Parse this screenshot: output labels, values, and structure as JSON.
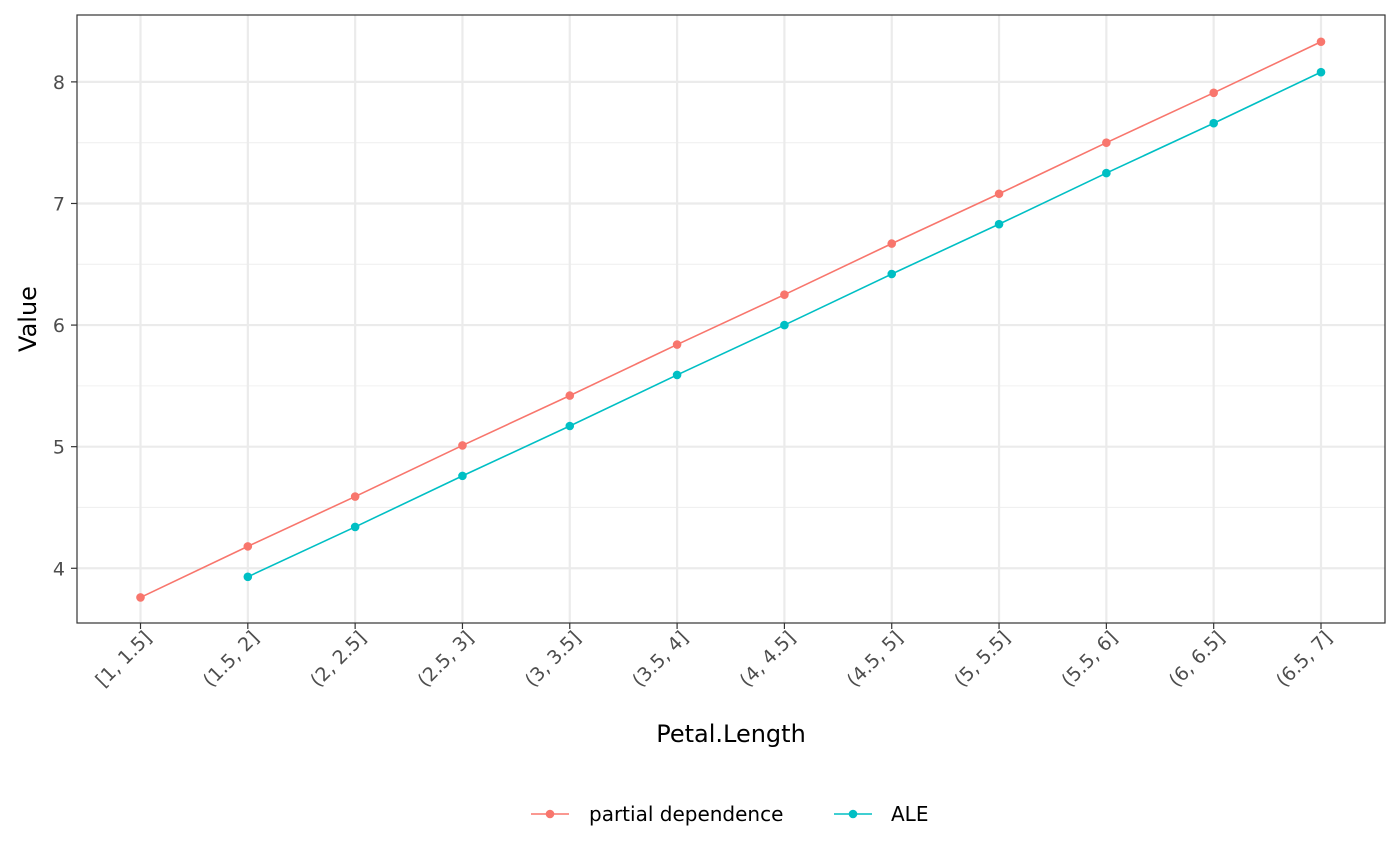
{
  "chart_data": {
    "type": "line",
    "xlabel": "Petal.Length",
    "ylabel": "Value",
    "categories": [
      "[1, 1.5]",
      "(1.5, 2]",
      "(2, 2.5]",
      "(2.5, 3]",
      "(3, 3.5]",
      "(3.5, 4]",
      "(4, 4.5]",
      "(4.5, 5]",
      "(5, 5.5]",
      "(5.5, 6]",
      "(6, 6.5]",
      "(6.5, 7]"
    ],
    "yticks": [
      4,
      5,
      6,
      7,
      8
    ],
    "ylim": [
      3.55,
      8.55
    ],
    "grid": true,
    "legend_position": "bottom",
    "series": [
      {
        "name": "partial dependence",
        "color": "#F8766D",
        "values": [
          3.76,
          4.18,
          4.59,
          5.01,
          5.42,
          5.84,
          6.25,
          6.67,
          7.08,
          7.5,
          7.91,
          8.33
        ]
      },
      {
        "name": "ALE",
        "color": "#00BFC4",
        "values": [
          null,
          3.93,
          4.34,
          4.76,
          5.17,
          5.59,
          6.0,
          6.42,
          6.83,
          7.25,
          7.66,
          8.08
        ]
      }
    ]
  }
}
